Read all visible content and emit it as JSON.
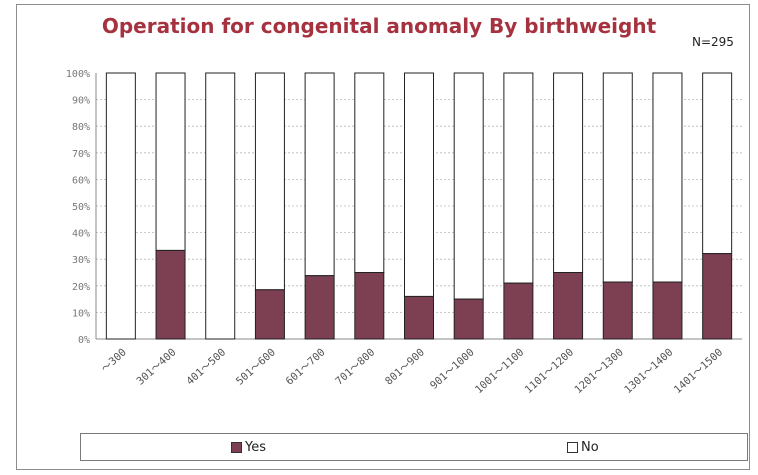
{
  "chart_data": {
    "type": "bar",
    "stacked": "percent",
    "title": "Operation for congenital anomaly By birthweight",
    "annotation": "N=295",
    "xlabel": "",
    "ylabel": "",
    "categories": [
      "～300",
      "301～400",
      "401～500",
      "501～600",
      "601～700",
      "701～800",
      "801～900",
      "901～1000",
      "1001～1100",
      "1101～1200",
      "1201～1300",
      "1301～1400",
      "1401～1500"
    ],
    "series": [
      {
        "name": "Yes",
        "color": "#7d3f52",
        "values": [
          0,
          33.3,
          0,
          18.5,
          23.8,
          25,
          16,
          15,
          21,
          25,
          21.4,
          21.4,
          32.1
        ]
      },
      {
        "name": "No",
        "color": "#ffffff",
        "values": [
          100,
          66.7,
          100,
          81.5,
          76.2,
          75,
          84,
          85,
          79,
          75,
          78.6,
          78.6,
          67.9
        ]
      }
    ],
    "ylim": [
      0,
      100
    ],
    "yticks": [
      "0%",
      "10%",
      "20%",
      "30%",
      "40%",
      "50%",
      "60%",
      "70%",
      "80%",
      "90%",
      "100%"
    ],
    "grid": true,
    "legend_position": "bottom"
  }
}
